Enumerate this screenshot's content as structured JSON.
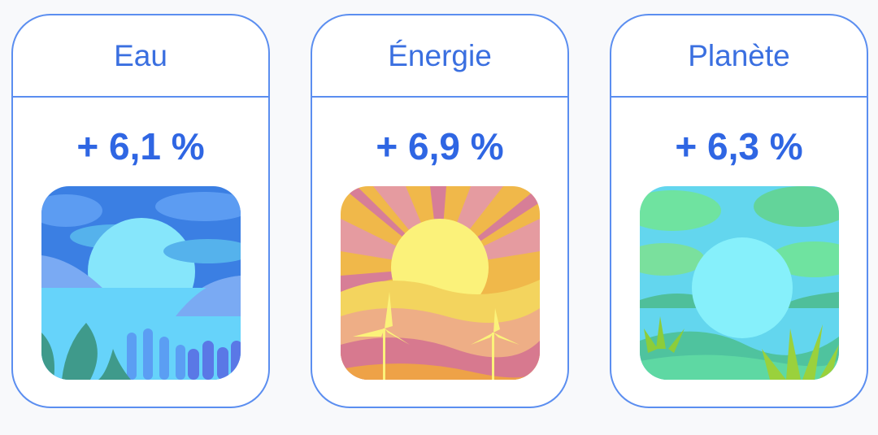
{
  "cards": [
    {
      "title": "Eau",
      "value": "+ 6,1 %",
      "image": "ocean-sunset-illustration"
    },
    {
      "title": "Énergie",
      "value": "+ 6,9 %",
      "image": "sun-wind-turbines-illustration"
    },
    {
      "title": "Planète",
      "value": "+ 6,3 %",
      "image": "green-landscape-illustration"
    }
  ],
  "colors": {
    "accent": "#2f66e3",
    "border": "#5b8ef0"
  }
}
